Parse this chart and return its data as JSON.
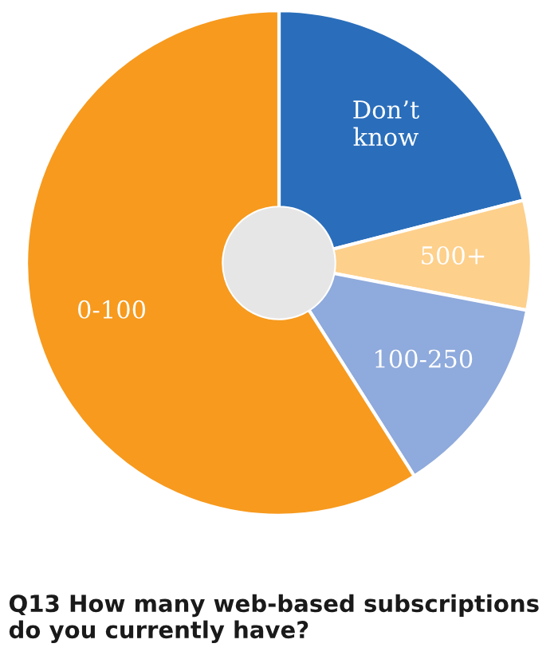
{
  "chart_data": {
    "type": "donut",
    "title": "Q13 How many web-based subscriptions do you currently have?",
    "categories": [
      "Don’t\nknow",
      "500+",
      "100-250",
      "0-100"
    ],
    "values": [
      21,
      7,
      13,
      59
    ],
    "colors": [
      "#2a6ebb",
      "#fdd08c",
      "#8faadc",
      "#f79a1e"
    ]
  }
}
